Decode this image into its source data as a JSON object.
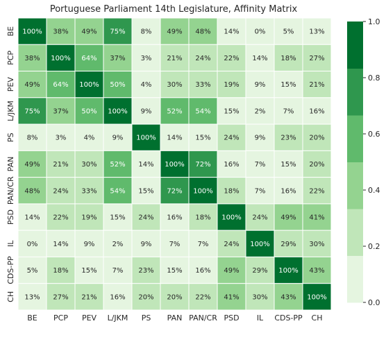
{
  "chart_data": {
    "type": "heatmap",
    "title": "Portuguese Parliament 14th Legislature, Affinity Matrix",
    "x_labels": [
      "BE",
      "PCP",
      "PEV",
      "L/JKM",
      "PS",
      "PAN",
      "PAN/CR",
      "PSD",
      "IL",
      "CDS-PP",
      "CH"
    ],
    "y_labels": [
      "BE",
      "PCP",
      "PEV",
      "L/JKM",
      "PS",
      "PAN",
      "PAN/CR",
      "PSD",
      "IL",
      "CDS-PP",
      "CH"
    ],
    "values": [
      [
        100,
        38,
        49,
        75,
        8,
        49,
        48,
        14,
        0,
        5,
        13
      ],
      [
        38,
        100,
        64,
        37,
        3,
        21,
        24,
        22,
        14,
        18,
        27
      ],
      [
        49,
        64,
        100,
        50,
        4,
        30,
        33,
        19,
        9,
        15,
        21
      ],
      [
        75,
        37,
        50,
        100,
        9,
        52,
        54,
        15,
        2,
        7,
        16
      ],
      [
        8,
        3,
        4,
        9,
        100,
        14,
        15,
        24,
        9,
        23,
        20
      ],
      [
        49,
        21,
        30,
        52,
        14,
        100,
        72,
        16,
        7,
        15,
        20
      ],
      [
        48,
        24,
        33,
        54,
        15,
        72,
        100,
        18,
        7,
        16,
        22
      ],
      [
        14,
        22,
        19,
        15,
        24,
        16,
        18,
        100,
        24,
        49,
        41
      ],
      [
        0,
        14,
        9,
        2,
        9,
        7,
        7,
        24,
        100,
        29,
        30
      ],
      [
        5,
        18,
        15,
        7,
        23,
        15,
        16,
        49,
        29,
        100,
        43
      ],
      [
        13,
        27,
        21,
        16,
        20,
        20,
        22,
        41,
        30,
        43,
        100
      ]
    ],
    "value_suffix": "%",
    "colorbar": {
      "ticks": [
        "0.0",
        "0.2",
        "0.4",
        "0.6",
        "0.8",
        "1.0"
      ],
      "range": [
        0,
        1
      ],
      "bands": [
        "#e5f5e0",
        "#c0e6b9",
        "#94d390",
        "#60ba6c",
        "#2f974e",
        "#00702f"
      ]
    }
  }
}
